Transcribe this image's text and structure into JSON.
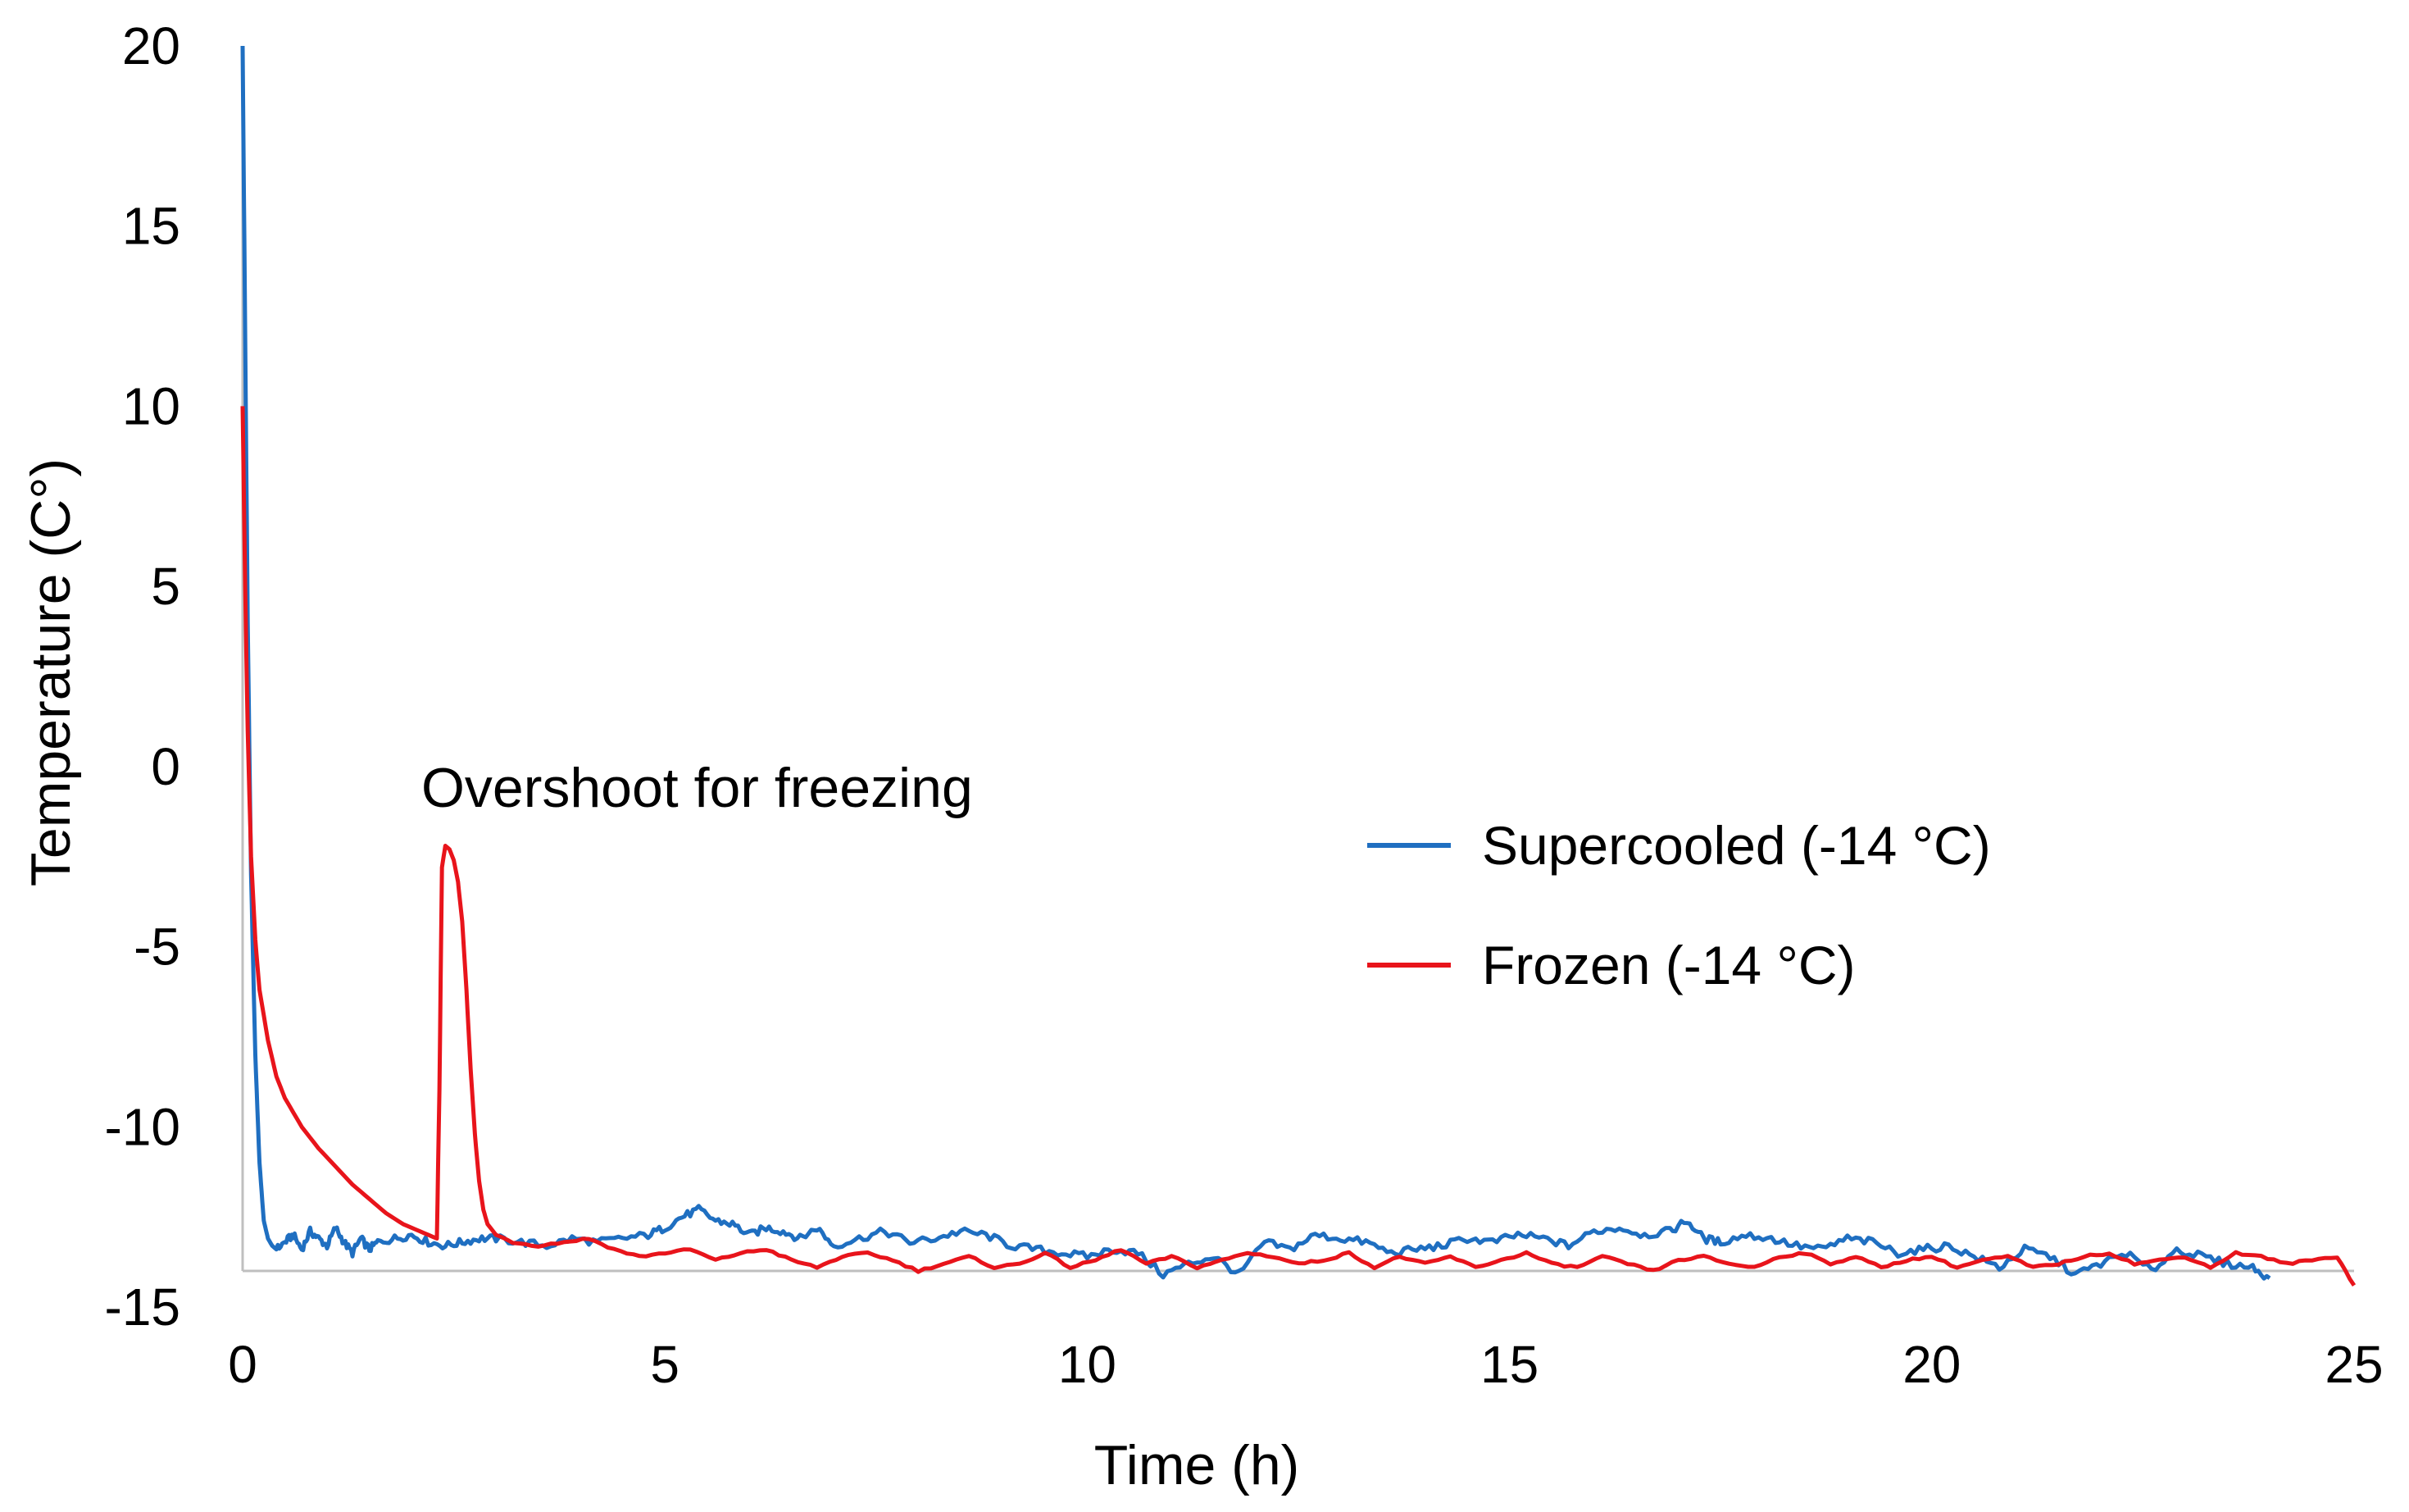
{
  "chart_data": {
    "type": "line",
    "title": "",
    "xlabel": "Time (h)",
    "ylabel": "Temperature (C°)",
    "xlim": [
      0,
      25
    ],
    "ylim": [
      -15,
      20
    ],
    "xticks": [
      0,
      5,
      10,
      15,
      20,
      25
    ],
    "yticks": [
      20,
      15,
      10,
      5,
      0,
      -5,
      -10,
      -15
    ],
    "xtick_labels": [
      "0",
      "5",
      "10",
      "15",
      "20",
      "25"
    ],
    "ytick_labels": [
      "20",
      "15",
      "10",
      "5",
      "0",
      "-5",
      "-10",
      "-15"
    ],
    "grid": false,
    "legend_position": "right-middle",
    "annotations": [
      {
        "text": "Overshoot for freezing",
        "x": 2.1,
        "y": 0.2
      }
    ],
    "series": [
      {
        "name": "Supercooled (-14 °C)",
        "color": "#1F6FC1",
        "x": [
          0,
          0.03,
          0.06,
          0.1,
          0.15,
          0.2,
          0.25,
          0.3,
          0.35,
          0.4,
          0.5,
          0.6,
          0.7,
          0.8,
          0.9,
          1.0,
          1.1,
          1.2,
          1.3,
          1.4,
          1.5,
          1.6,
          1.8,
          2.0,
          2.2,
          2.4,
          2.6,
          2.8,
          3.0,
          3.3,
          3.6,
          3.9,
          4.2,
          4.5,
          4.8,
          5.0,
          5.2,
          5.4,
          5.6,
          5.8,
          6.0,
          6.2,
          6.4,
          6.6,
          6.8,
          7.0,
          7.3,
          7.6,
          7.9,
          8.2,
          8.5,
          8.8,
          9.1,
          9.4,
          9.7,
          10.0,
          10.3,
          10.6,
          10.9,
          11.2,
          11.5,
          11.8,
          12.1,
          12.4,
          12.7,
          13.0,
          13.3,
          13.6,
          13.9,
          14.2,
          14.5,
          14.8,
          15.1,
          15.4,
          15.7,
          16.0,
          16.3,
          16.6,
          16.9,
          17.1,
          17.3,
          17.5,
          17.8,
          18.1,
          18.4,
          18.7,
          19.0,
          19.3,
          19.6,
          19.9,
          20.2,
          20.5,
          20.8,
          21.1,
          21.4,
          21.7,
          22.0,
          22.3,
          22.6,
          22.9,
          23.2,
          23.5,
          23.8,
          24.0
        ],
        "y": [
          20,
          12,
          4,
          -3,
          -8,
          -11,
          -12.6,
          -13.1,
          -13.3,
          -13.4,
          -13.2,
          -13.0,
          -13.4,
          -12.9,
          -13.1,
          -13.3,
          -12.8,
          -13.2,
          -13.5,
          -13.1,
          -13.4,
          -13.2,
          -13.1,
          -13.0,
          -13.2,
          -13.3,
          -13.2,
          -13.1,
          -13.1,
          -13.2,
          -13.3,
          -13.1,
          -13.2,
          -13.1,
          -13.0,
          -12.8,
          -12.5,
          -12.3,
          -12.6,
          -12.7,
          -13.0,
          -12.8,
          -12.9,
          -13.1,
          -12.8,
          -13.3,
          -13.1,
          -12.9,
          -13.2,
          -13.1,
          -12.9,
          -13.0,
          -13.3,
          -13.4,
          -13.5,
          -13.6,
          -13.4,
          -13.5,
          -14.1,
          -13.8,
          -13.6,
          -14.1,
          -13.2,
          -13.4,
          -13.0,
          -13.1,
          -13.2,
          -13.5,
          -13.4,
          -13.3,
          -13.1,
          -13.2,
          -13.0,
          -13.1,
          -13.3,
          -12.9,
          -12.8,
          -13.0,
          -12.9,
          -12.6,
          -13.1,
          -13.2,
          -13.0,
          -13.1,
          -13.3,
          -13.4,
          -13.1,
          -13.2,
          -13.5,
          -13.4,
          -13.3,
          -13.6,
          -13.9,
          -13.4,
          -13.6,
          -14.1,
          -13.8,
          -13.5,
          -14.0,
          -13.4,
          -13.6,
          -13.8,
          -13.9,
          -14.2
        ]
      },
      {
        "name": "Frozen (-14 °C)",
        "color": "#E8141B",
        "x": [
          0,
          0.03,
          0.06,
          0.1,
          0.15,
          0.2,
          0.3,
          0.4,
          0.5,
          0.7,
          0.9,
          1.1,
          1.3,
          1.5,
          1.7,
          1.9,
          2.1,
          2.3,
          2.33,
          2.36,
          2.4,
          2.45,
          2.5,
          2.55,
          2.6,
          2.65,
          2.7,
          2.75,
          2.8,
          2.85,
          2.9,
          3.0,
          3.2,
          3.5,
          3.8,
          4.1,
          4.4,
          4.7,
          5.0,
          5.3,
          5.6,
          5.9,
          6.2,
          6.5,
          6.8,
          7.1,
          7.4,
          7.7,
          8.0,
          8.3,
          8.6,
          8.9,
          9.2,
          9.5,
          9.8,
          10.1,
          10.4,
          10.7,
          11.0,
          11.3,
          11.6,
          11.9,
          12.2,
          12.5,
          12.8,
          13.1,
          13.4,
          13.7,
          14.0,
          14.3,
          14.6,
          14.9,
          15.2,
          15.5,
          15.8,
          16.1,
          16.4,
          16.7,
          17.0,
          17.3,
          17.6,
          17.9,
          18.2,
          18.5,
          18.8,
          19.1,
          19.4,
          19.7,
          20.0,
          20.3,
          20.6,
          20.9,
          21.2,
          21.5,
          21.8,
          22.1,
          22.4,
          22.7,
          23.0,
          23.3,
          23.6,
          23.9,
          24.2,
          24.5,
          24.8,
          25.0
        ],
        "y": [
          10,
          5,
          1,
          -2.5,
          -4.8,
          -6.2,
          -7.6,
          -8.6,
          -9.2,
          -10.0,
          -10.6,
          -11.1,
          -11.6,
          -12.0,
          -12.4,
          -12.7,
          -12.9,
          -13.1,
          -9.0,
          -2.8,
          -2.2,
          -2.3,
          -2.6,
          -3.2,
          -4.3,
          -6.2,
          -8.4,
          -10.2,
          -11.5,
          -12.3,
          -12.7,
          -13.0,
          -13.2,
          -13.3,
          -13.2,
          -13.1,
          -13.4,
          -13.6,
          -13.5,
          -13.4,
          -13.7,
          -13.5,
          -13.4,
          -13.7,
          -13.9,
          -13.6,
          -13.5,
          -13.7,
          -14.0,
          -13.8,
          -13.6,
          -13.9,
          -13.8,
          -13.5,
          -13.9,
          -13.7,
          -13.4,
          -13.8,
          -13.6,
          -13.9,
          -13.7,
          -13.5,
          -13.6,
          -13.8,
          -13.7,
          -13.5,
          -13.9,
          -13.6,
          -13.8,
          -13.6,
          -13.9,
          -13.7,
          -13.5,
          -13.8,
          -13.9,
          -13.6,
          -13.8,
          -14.0,
          -13.7,
          -13.6,
          -13.8,
          -13.9,
          -13.6,
          -13.5,
          -13.8,
          -13.6,
          -13.9,
          -13.7,
          -13.6,
          -13.9,
          -13.7,
          -13.6,
          -13.9,
          -13.8,
          -13.6,
          -13.5,
          -13.8,
          -13.7,
          -13.6,
          -13.9,
          -13.5,
          -13.6,
          -13.8,
          -13.7,
          -13.6,
          -14.4
        ]
      }
    ]
  }
}
